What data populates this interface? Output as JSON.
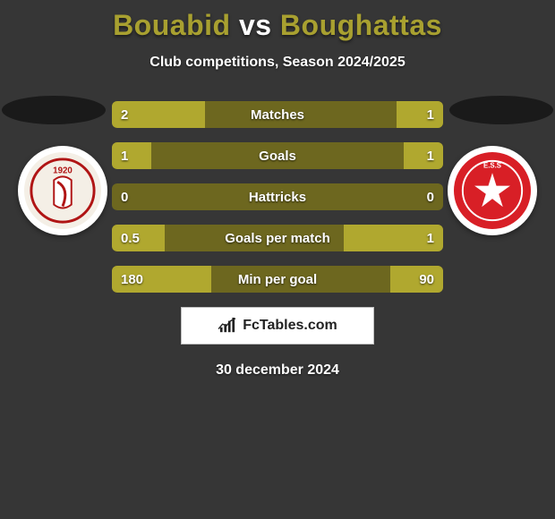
{
  "background_color": "#363636",
  "title": {
    "left": "Bouabid",
    "vs": "vs",
    "right": "Boughattas",
    "left_color": "#a8a030",
    "vs_color": "#ffffff",
    "right_color": "#a8a030"
  },
  "subtitle": "Club competitions, Season 2024/2025",
  "oval_color": "#1a1a1a",
  "left_player": {
    "badge_bg": "#ffffff",
    "inner_bg": "#f4efe6",
    "accent": "#b01515",
    "text": "1920",
    "name": "left-club-badge"
  },
  "right_player": {
    "badge_bg": "#ffffff",
    "inner_bg": "#d81f26",
    "accent": "#ffffff",
    "text": "E.S.S",
    "name": "right-club-badge"
  },
  "row_style": {
    "track_color": "#6d671f",
    "left_fill_color": "#b0a82f",
    "right_fill_color": "#b0a82f",
    "text_color": "#ffffff"
  },
  "rows": [
    {
      "label": "Matches",
      "left_val": "2",
      "right_val": "1",
      "left_pct": 28,
      "right_pct": 14
    },
    {
      "label": "Goals",
      "left_val": "1",
      "right_val": "1",
      "left_pct": 12,
      "right_pct": 12
    },
    {
      "label": "Hattricks",
      "left_val": "0",
      "right_val": "0",
      "left_pct": 0,
      "right_pct": 0
    },
    {
      "label": "Goals per match",
      "left_val": "0.5",
      "right_val": "1",
      "left_pct": 16,
      "right_pct": 30
    },
    {
      "label": "Min per goal",
      "left_val": "180",
      "right_val": "90",
      "left_pct": 30,
      "right_pct": 16
    }
  ],
  "brand": "FcTables.com",
  "date": "30 december 2024"
}
